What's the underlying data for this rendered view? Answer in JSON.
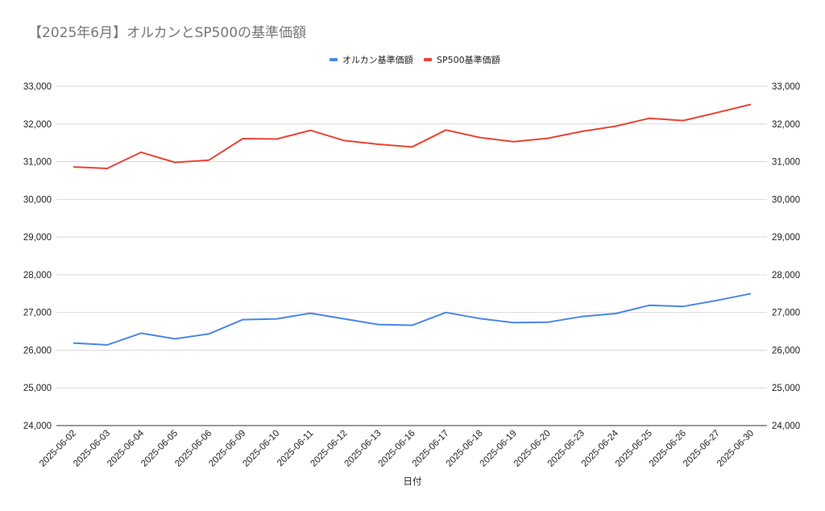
{
  "chart_data": {
    "type": "line",
    "title": "【2025年6月】オルカンとSP500の基準価額",
    "xlabel": "日付",
    "ylabel": "",
    "ylim": [
      24000,
      33000
    ],
    "y_ticks": [
      "24,000",
      "25,000",
      "26,000",
      "27,000",
      "28,000",
      "29,000",
      "30,000",
      "31,000",
      "32,000",
      "33,000"
    ],
    "y_tick_values": [
      24000,
      25000,
      26000,
      27000,
      28000,
      29000,
      30000,
      31000,
      32000,
      33000
    ],
    "dual_axis_mirrored": true,
    "grid": true,
    "legend_position": "top",
    "categories": [
      "2025-06-02",
      "2025-06-03",
      "2025-06-04",
      "2025-06-05",
      "2025-06-06",
      "2025-06-09",
      "2025-06-10",
      "2025-06-11",
      "2025-06-12",
      "2025-06-13",
      "2025-06-16",
      "2025-06-17",
      "2025-06-18",
      "2025-06-19",
      "2025-06-20",
      "2025-06-23",
      "2025-06-24",
      "2025-06-25",
      "2025-06-26",
      "2025-06-27",
      "2025-06-30"
    ],
    "series": [
      {
        "name": "オルカン基準価額",
        "color": "#4a86e8",
        "values": [
          26190,
          26140,
          26450,
          26300,
          26430,
          26810,
          26830,
          26980,
          26830,
          26680,
          26660,
          27000,
          26840,
          26730,
          26740,
          26890,
          26970,
          27190,
          27160,
          27320,
          27500
        ]
      },
      {
        "name": "SP500基準価額",
        "color": "#ea4335",
        "values": [
          30860,
          30820,
          31250,
          30980,
          31040,
          31610,
          31600,
          31830,
          31560,
          31460,
          31390,
          31840,
          31640,
          31530,
          31620,
          31800,
          31940,
          32150,
          32090,
          32300,
          32520
        ]
      }
    ]
  }
}
